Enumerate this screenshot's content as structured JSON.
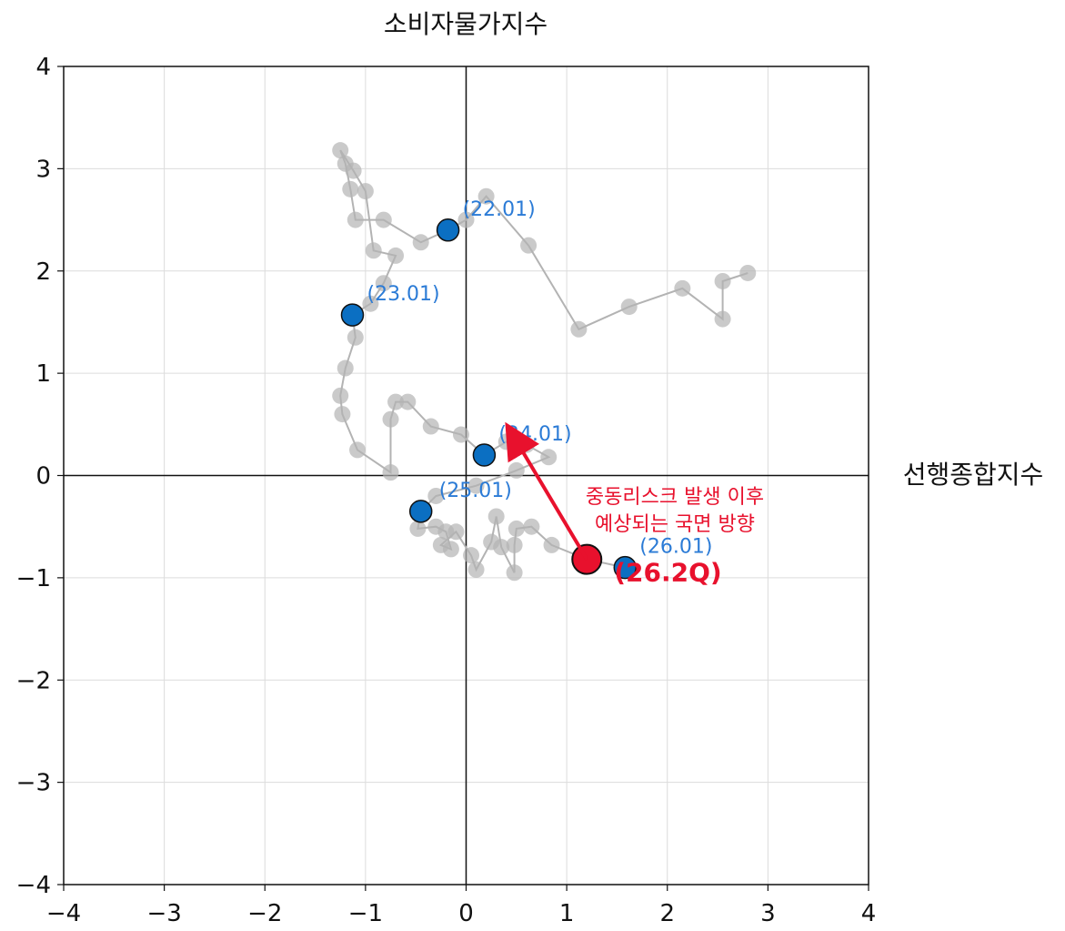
{
  "chart_data": {
    "type": "scatter",
    "xlabel": "선행종합지수",
    "ylabel": "소비자물가지수",
    "xlim": [
      -4,
      4
    ],
    "ylim": [
      -4,
      4
    ],
    "xticks": [
      -4,
      -3,
      -2,
      -1,
      0,
      1,
      2,
      3,
      4
    ],
    "yticks": [
      -4,
      -3,
      -2,
      -1,
      0,
      1,
      2,
      3,
      4
    ],
    "grid": true,
    "colors": {
      "trail": "#b3b3b3",
      "marker": "#0b6fc2",
      "marker_label": "#2b7bd6",
      "current": "#e8112d"
    },
    "trail": [
      {
        "x": 2.8,
        "y": 1.98
      },
      {
        "x": 2.55,
        "y": 1.9
      },
      {
        "x": 2.55,
        "y": 1.53
      },
      {
        "x": 2.15,
        "y": 1.83
      },
      {
        "x": 1.62,
        "y": 1.65
      },
      {
        "x": 1.12,
        "y": 1.43
      },
      {
        "x": 0.62,
        "y": 2.25
      },
      {
        "x": 0.2,
        "y": 2.73
      },
      {
        "x": 0.0,
        "y": 2.5
      },
      {
        "x": -0.18,
        "y": 2.4
      },
      {
        "x": -0.45,
        "y": 2.28
      },
      {
        "x": -0.82,
        "y": 2.5
      },
      {
        "x": -1.1,
        "y": 2.5
      },
      {
        "x": -1.15,
        "y": 2.8
      },
      {
        "x": -1.2,
        "y": 3.05
      },
      {
        "x": -1.25,
        "y": 3.18
      },
      {
        "x": -1.12,
        "y": 2.98
      },
      {
        "x": -1.0,
        "y": 2.78
      },
      {
        "x": -0.92,
        "y": 2.2
      },
      {
        "x": -0.7,
        "y": 2.15
      },
      {
        "x": -0.82,
        "y": 1.88
      },
      {
        "x": -0.95,
        "y": 1.68
      },
      {
        "x": -1.13,
        "y": 1.57
      },
      {
        "x": -1.1,
        "y": 1.35
      },
      {
        "x": -1.2,
        "y": 1.05
      },
      {
        "x": -1.25,
        "y": 0.78
      },
      {
        "x": -1.23,
        "y": 0.6
      },
      {
        "x": -1.08,
        "y": 0.25
      },
      {
        "x": -0.75,
        "y": 0.03
      },
      {
        "x": -0.75,
        "y": 0.55
      },
      {
        "x": -0.7,
        "y": 0.72
      },
      {
        "x": -0.58,
        "y": 0.72
      },
      {
        "x": -0.35,
        "y": 0.48
      },
      {
        "x": -0.05,
        "y": 0.4
      },
      {
        "x": 0.18,
        "y": 0.2
      },
      {
        "x": 0.4,
        "y": 0.33
      },
      {
        "x": 0.6,
        "y": 0.3
      },
      {
        "x": 0.82,
        "y": 0.18
      },
      {
        "x": 0.5,
        "y": 0.05
      },
      {
        "x": 0.1,
        "y": -0.1
      },
      {
        "x": -0.3,
        "y": -0.2
      },
      {
        "x": -0.45,
        "y": -0.35
      },
      {
        "x": -0.48,
        "y": -0.52
      },
      {
        "x": -0.3,
        "y": -0.5
      },
      {
        "x": -0.2,
        "y": -0.55
      },
      {
        "x": -0.15,
        "y": -0.72
      },
      {
        "x": -0.25,
        "y": -0.68
      },
      {
        "x": -0.1,
        "y": -0.55
      },
      {
        "x": 0.05,
        "y": -0.78
      },
      {
        "x": 0.1,
        "y": -0.92
      },
      {
        "x": 0.25,
        "y": -0.65
      },
      {
        "x": 0.3,
        "y": -0.4
      },
      {
        "x": 0.35,
        "y": -0.7
      },
      {
        "x": 0.48,
        "y": -0.95
      },
      {
        "x": 0.48,
        "y": -0.68
      },
      {
        "x": 0.5,
        "y": -0.52
      },
      {
        "x": 0.65,
        "y": -0.5
      },
      {
        "x": 0.85,
        "y": -0.68
      },
      {
        "x": 1.2,
        "y": -0.82
      },
      {
        "x": 1.58,
        "y": -0.9
      }
    ],
    "markers": [
      {
        "label": "(22.01)",
        "x": -0.18,
        "y": 2.4
      },
      {
        "label": "(23.01)",
        "x": -1.13,
        "y": 1.57
      },
      {
        "label": "(24.01)",
        "x": 0.18,
        "y": 0.2
      },
      {
        "label": "(25.01)",
        "x": -0.45,
        "y": -0.35
      },
      {
        "label": "(26.01)",
        "x": 1.58,
        "y": -0.9
      }
    ],
    "current": {
      "label": "(26.2Q)",
      "x": 1.2,
      "y": -0.82
    },
    "annotation": {
      "lines": [
        "중동리스크 발생 이후",
        "예상되는 국면 방향"
      ],
      "arrow_from": {
        "x": 1.2,
        "y": -0.82
      },
      "arrow_to": {
        "x": 0.48,
        "y": 0.37
      }
    }
  }
}
